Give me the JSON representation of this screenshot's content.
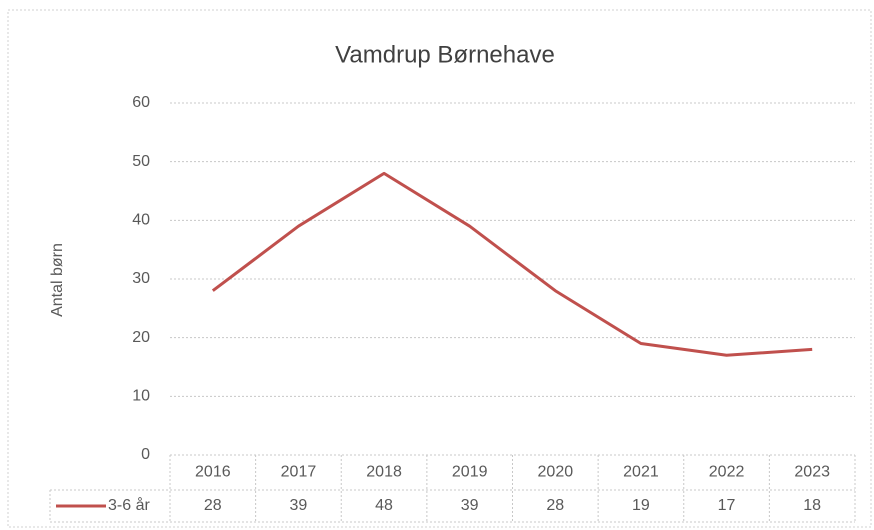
{
  "chart_data": {
    "type": "line",
    "title": "Vamdrup Børnehave",
    "y_label": "Antal børn",
    "categories": [
      "2016",
      "2017",
      "2018",
      "2019",
      "2020",
      "2021",
      "2022",
      "2023"
    ],
    "series": [
      {
        "name": "3-6 år",
        "color": "#c0504d",
        "values": [
          28,
          39,
          48,
          39,
          28,
          19,
          17,
          18
        ]
      }
    ],
    "ylim": [
      0,
      60
    ],
    "yticks": [
      0,
      10,
      20,
      30,
      40,
      50,
      60
    ],
    "grid": true,
    "data_table": true
  }
}
